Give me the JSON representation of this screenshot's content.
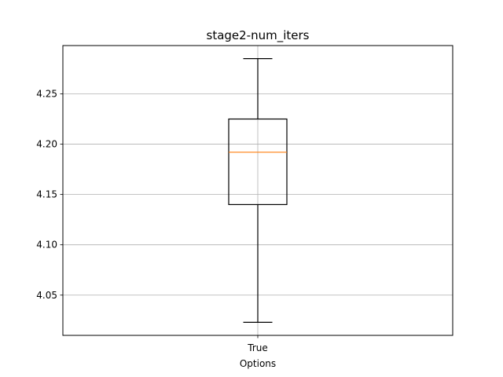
{
  "chart_data": {
    "type": "box",
    "title": "stage2-num_iters",
    "xlabel": "Options",
    "ylabel": "",
    "categories": [
      "True"
    ],
    "boxes": [
      {
        "category": "True",
        "whisker_low": 4.023,
        "q1": 4.14,
        "median": 4.192,
        "q3": 4.225,
        "whisker_high": 4.285
      }
    ],
    "ylim": [
      4.01,
      4.298
    ],
    "yticks": [
      4.05,
      4.1,
      4.15,
      4.2,
      4.25
    ],
    "ytick_labels": [
      "4.05",
      "4.10",
      "4.15",
      "4.20",
      "4.25"
    ],
    "grid": true,
    "colors": {
      "box": "#000000",
      "median": "#ff7f0e",
      "grid": "#b0b0b0"
    }
  }
}
